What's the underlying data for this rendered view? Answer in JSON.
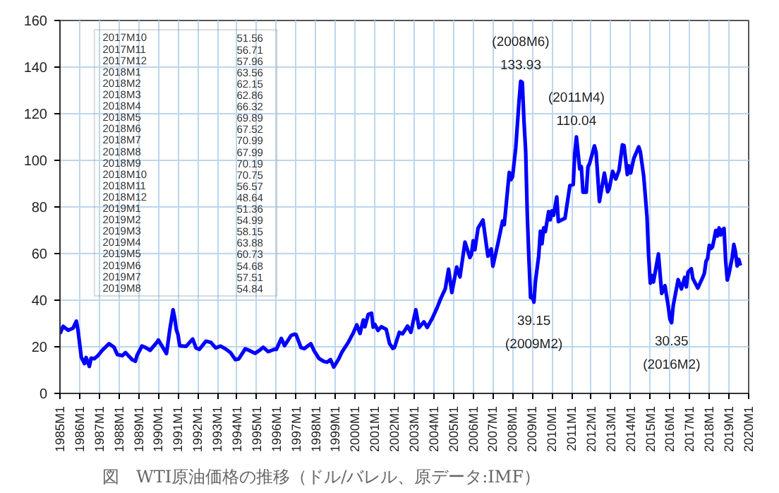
{
  "chart_data": {
    "type": "line",
    "title": "図　WTI原油価格の推移（ドル/バレル、原データ:IMF）",
    "x": [
      "1985-01",
      "1985-03",
      "1985-06",
      "1985-09",
      "1985-11",
      "1985-12",
      "1986-02",
      "1986-04",
      "1986-05",
      "1986-07",
      "1986-08",
      "1986-10",
      "1986-12",
      "1987-03",
      "1987-07",
      "1987-10",
      "1987-12",
      "1988-03",
      "1988-05",
      "1988-09",
      "1988-11",
      "1988-12",
      "1989-03",
      "1989-05",
      "1989-08",
      "1989-12",
      "1990-01",
      "1990-06",
      "1990-08",
      "1990-10",
      "1990-11",
      "1990-12",
      "1991-01",
      "1991-02",
      "1991-06",
      "1991-10",
      "1991-12",
      "1992-02",
      "1992-06",
      "1992-09",
      "1992-12",
      "1993-03",
      "1993-06",
      "1993-09",
      "1993-12",
      "1994-02",
      "1994-06",
      "1994-08",
      "1994-12",
      "1995-03",
      "1995-05",
      "1995-08",
      "1995-12",
      "1996-01",
      "1996-04",
      "1996-06",
      "1996-10",
      "1996-12",
      "1997-01",
      "1997-04",
      "1997-06",
      "1997-10",
      "1997-12",
      "1998-03",
      "1998-06",
      "1998-08",
      "1998-10",
      "1998-12",
      "1999-03",
      "1999-05",
      "1999-09",
      "1999-12",
      "2000-02",
      "2000-04",
      "2000-06",
      "2000-07",
      "2000-09",
      "2000-11",
      "2000-12",
      "2001-01",
      "2001-03",
      "2001-05",
      "2001-08",
      "2001-10",
      "2001-12",
      "2002-01",
      "2002-04",
      "2002-06",
      "2002-09",
      "2002-11",
      "2002-12",
      "2003-02",
      "2003-04",
      "2003-07",
      "2003-09",
      "2003-12",
      "2004-03",
      "2004-05",
      "2004-08",
      "2004-10",
      "2004-12",
      "2005-03",
      "2005-05",
      "2005-08",
      "2005-11",
      "2005-12",
      "2006-01",
      "2006-02",
      "2006-04",
      "2006-07",
      "2006-10",
      "2006-12",
      "2007-01",
      "2007-04",
      "2007-07",
      "2007-08",
      "2007-11",
      "2007-12",
      "2008-01",
      "2008-03",
      "2008-05",
      "2008-06",
      "2008-07",
      "2008-08",
      "2008-09",
      "2008-10",
      "2008-11",
      "2008-12",
      "2009-01",
      "2009-02",
      "2009-03",
      "2009-05",
      "2009-06",
      "2009-07",
      "2009-08",
      "2009-09",
      "2009-11",
      "2009-12",
      "2010-01",
      "2010-02",
      "2010-04",
      "2010-05",
      "2010-09",
      "2010-12",
      "2011-02",
      "2011-03",
      "2011-04",
      "2011-06",
      "2011-07",
      "2011-08",
      "2011-10",
      "2011-11",
      "2011-12",
      "2012-03",
      "2012-04",
      "2012-06",
      "2012-09",
      "2012-11",
      "2012-12",
      "2013-02",
      "2013-04",
      "2013-06",
      "2013-08",
      "2013-09",
      "2013-11",
      "2013-12",
      "2014-01",
      "2014-03",
      "2014-06",
      "2014-07",
      "2014-09",
      "2014-11",
      "2014-12",
      "2015-01",
      "2015-02",
      "2015-03",
      "2015-06",
      "2015-08",
      "2015-10",
      "2015-12",
      "2016-01",
      "2016-02",
      "2016-03",
      "2016-06",
      "2016-08",
      "2016-10",
      "2016-11",
      "2016-12",
      "2017-02",
      "2017-03",
      "2017-06",
      "2017-09",
      "2017-10",
      "2017-11",
      "2017-12",
      "2018-01",
      "2018-02",
      "2018-03",
      "2018-04",
      "2018-05",
      "2018-06",
      "2018-07",
      "2018-08",
      "2018-09",
      "2018-10",
      "2018-11",
      "2018-12",
      "2019-01",
      "2019-02",
      "2019-03",
      "2019-04",
      "2019-05",
      "2019-06",
      "2019-07",
      "2019-08"
    ],
    "series": [
      {
        "color": "#0000ff",
        "values": [
          25.6,
          28.8,
          27.1,
          28.0,
          31.0,
          27.2,
          15.5,
          12.8,
          15.4,
          11.6,
          15.1,
          14.9,
          16.1,
          18.6,
          21.3,
          19.8,
          16.7,
          16.2,
          17.5,
          14.5,
          13.8,
          16.3,
          20.3,
          19.8,
          18.5,
          21.8,
          22.9,
          17.1,
          27.3,
          35.9,
          32.3,
          27.3,
          25.2,
          20.4,
          20.2,
          23.3,
          19.5,
          18.9,
          22.4,
          21.9,
          19.5,
          20.3,
          19.1,
          17.5,
          14.5,
          14.8,
          19.1,
          18.6,
          17.2,
          18.6,
          19.8,
          17.9,
          19.0,
          18.9,
          23.6,
          20.5,
          24.9,
          25.4,
          25.2,
          19.7,
          19.2,
          21.3,
          18.3,
          15.0,
          13.7,
          13.4,
          14.5,
          11.3,
          14.7,
          17.7,
          22.1,
          26.1,
          29.4,
          25.7,
          31.5,
          28.6,
          33.9,
          34.4,
          28.4,
          29.6,
          27.0,
          28.6,
          27.5,
          21.4,
          19.3,
          19.7,
          26.2,
          25.6,
          28.9,
          26.2,
          29.4,
          35.9,
          28.2,
          30.7,
          28.3,
          32.1,
          36.7,
          40.3,
          44.9,
          53.3,
          43.3,
          54.2,
          50.0,
          64.9,
          58.3,
          59.8,
          65.5,
          61.6,
          70.9,
          74.4,
          58.9,
          62.0,
          54.6,
          63.9,
          74.0,
          72.4,
          94.8,
          91.7,
          92.9,
          105.4,
          125.4,
          133.93,
          133.4,
          116.7,
          104.0,
          76.6,
          57.3,
          41.1,
          41.7,
          39.15,
          48.0,
          59.0,
          69.6,
          64.2,
          71.0,
          69.4,
          78.0,
          74.5,
          78.3,
          76.4,
          84.3,
          73.7,
          75.2,
          89.2,
          89.6,
          102.9,
          110.04,
          96.3,
          97.3,
          86.3,
          86.3,
          97.2,
          98.6,
          106.2,
          103.3,
          82.3,
          94.5,
          86.5,
          87.9,
          95.3,
          92.0,
          95.8,
          106.6,
          106.3,
          93.9,
          97.6,
          94.6,
          100.8,
          105.8,
          103.6,
          93.2,
          75.8,
          59.3,
          47.3,
          50.6,
          47.8,
          59.8,
          42.9,
          46.2,
          37.3,
          31.8,
          30.35,
          37.6,
          48.8,
          44.8,
          49.8,
          45.7,
          52.0,
          53.5,
          49.3,
          45.2,
          49.8,
          51.56,
          56.71,
          57.96,
          63.56,
          62.15,
          62.86,
          66.32,
          69.89,
          67.52,
          70.99,
          67.99,
          70.19,
          70.75,
          56.57,
          48.64,
          51.36,
          54.99,
          58.15,
          63.88,
          60.73,
          54.68,
          57.51,
          54.84
        ]
      }
    ],
    "xlim": [
      "1985-01",
      "2020-01"
    ],
    "xticks": [
      {
        "value": "1985-01",
        "label": "1985M1"
      },
      {
        "value": "1986-01",
        "label": "1986M1"
      },
      {
        "value": "1987-01",
        "label": "1987M1"
      },
      {
        "value": "1988-01",
        "label": "1988M1"
      },
      {
        "value": "1989-01",
        "label": "1989M1"
      },
      {
        "value": "1990-01",
        "label": "1990M1"
      },
      {
        "value": "1991-01",
        "label": "1991M1"
      },
      {
        "value": "1992-01",
        "label": "1992M1"
      },
      {
        "value": "1993-01",
        "label": "1993M1"
      },
      {
        "value": "1994-01",
        "label": "1994M1"
      },
      {
        "value": "1995-01",
        "label": "1995M1"
      },
      {
        "value": "1996-01",
        "label": "1996M1"
      },
      {
        "value": "1997-01",
        "label": "1997M1"
      },
      {
        "value": "1998-01",
        "label": "1998M1"
      },
      {
        "value": "1999-01",
        "label": "1999M1"
      },
      {
        "value": "2000-01",
        "label": "2000M1"
      },
      {
        "value": "2001-01",
        "label": "2001M1"
      },
      {
        "value": "2002-01",
        "label": "2002M1"
      },
      {
        "value": "2003-01",
        "label": "2003M1"
      },
      {
        "value": "2004-01",
        "label": "2004M1"
      },
      {
        "value": "2005-01",
        "label": "2005M1"
      },
      {
        "value": "2006-01",
        "label": "2006M1"
      },
      {
        "value": "2007-01",
        "label": "2007M1"
      },
      {
        "value": "2008-01",
        "label": "2008M1"
      },
      {
        "value": "2009-01",
        "label": "2009M1"
      },
      {
        "value": "2010-01",
        "label": "2010M1"
      },
      {
        "value": "2011-01",
        "label": "2011M1"
      },
      {
        "value": "2012-01",
        "label": "2012M1"
      },
      {
        "value": "2013-01",
        "label": "2013M1"
      },
      {
        "value": "2014-01",
        "label": "2014M1"
      },
      {
        "value": "2015-01",
        "label": "2015M1"
      },
      {
        "value": "2016-01",
        "label": "2016M1"
      },
      {
        "value": "2017-01",
        "label": "2017M1"
      },
      {
        "value": "2018-01",
        "label": "2018M1"
      },
      {
        "value": "2019-01",
        "label": "2019M1"
      },
      {
        "value": "2020-01",
        "label": "2020M1"
      }
    ],
    "ylim": [
      0,
      160
    ],
    "yticks": [
      0,
      20,
      40,
      60,
      80,
      100,
      120,
      140,
      160
    ],
    "grid": true,
    "annotations": [
      {
        "text": "(2008M6)\n133.93",
        "x": "2008-06",
        "y": 133.93
      },
      {
        "text": "(2011M4)\n110.04",
        "x": "2011-04",
        "y": 110.04
      },
      {
        "text": "39.15\n(2009M2)",
        "x": "2009-02",
        "y": 39.15
      },
      {
        "text": "30.35\n(2016M2)",
        "x": "2016-02",
        "y": 30.35
      },
      "2017M10 51.56",
      "2017M11 56.71",
      "2017M12 57.96",
      "2018M1 63.56",
      "2018M2 62.15",
      "2018M3 62.86",
      "2018M4 66.32",
      "2018M5 69.89",
      "2018M6 67.52",
      "2018M7 70.99",
      "2018M8 67.99",
      "2018M9 70.19",
      "2018M10 70.75",
      "2018M11 56.57",
      "2018M12 48.64",
      "2019M1 51.36",
      "2019M2 54.99",
      "2019M3 58.15",
      "2019M4 63.88",
      "2019M5 60.73",
      "2019M6 54.68",
      "2019M7 57.51",
      "2019M8 54.84"
    ]
  }
}
